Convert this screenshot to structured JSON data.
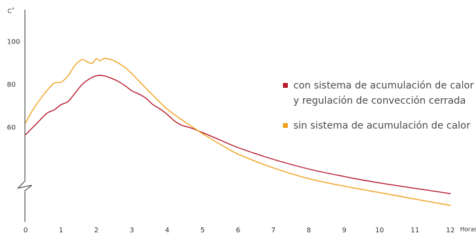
{
  "chart_data": {
    "type": "line",
    "ylabel": "C˚",
    "xlabel": "Horas",
    "xlim": [
      0,
      12
    ],
    "ylim": [
      20,
      100
    ],
    "y_axis_break": true,
    "x_ticks": [
      "0",
      "1",
      "2",
      "3",
      "4",
      "5",
      "6",
      "7",
      "8",
      "9",
      "10",
      "11",
      "12"
    ],
    "y_ticks": [
      "100",
      "80",
      "60"
    ],
    "grid": false,
    "legend_position": "right",
    "series": [
      {
        "name": "con sistema de acumulación de calor y regulación de convección cerrada",
        "name_lines": [
          "con sistema de acumulación de calor",
          "y regulación de convección cerrada"
        ],
        "color": "#b5182b",
        "x": [
          0,
          0.3,
          0.6,
          0.8,
          1.0,
          1.2,
          1.4,
          1.6,
          1.8,
          2.0,
          2.2,
          2.4,
          2.6,
          2.8,
          3.0,
          3.2,
          3.4,
          3.6,
          3.8,
          4.0,
          4.2,
          4.4,
          4.7,
          5.0,
          5.5,
          6,
          7,
          8,
          9,
          10,
          11,
          12
        ],
        "values": [
          56.5,
          61.5,
          66.5,
          68,
          70.5,
          72,
          76,
          80,
          82.5,
          84,
          84,
          83,
          81.5,
          79.5,
          77,
          75.5,
          73.5,
          70.5,
          68.5,
          66,
          63,
          61,
          59.5,
          57.5,
          54,
          50.5,
          45,
          40.5,
          37,
          34,
          31.5,
          29
        ]
      },
      {
        "name": "sin sistema de acumulación de calor",
        "name_lines": [
          "sin sistema de acumulación de calor"
        ],
        "color": "#f0a01c",
        "x": [
          0,
          0.2,
          0.5,
          0.8,
          1.0,
          1.2,
          1.4,
          1.6,
          1.8,
          1.9,
          2.0,
          2.1,
          2.2,
          2.3,
          2.5,
          2.8,
          3.0,
          3.5,
          4.0,
          4.5,
          5.0,
          5.5,
          6,
          7,
          8,
          9,
          10,
          11,
          12
        ],
        "values": [
          62,
          68,
          75,
          80.5,
          81,
          84,
          89,
          91.5,
          90,
          90,
          92,
          91,
          92,
          92,
          91,
          88,
          85,
          76.5,
          68.5,
          62.5,
          57,
          52,
          47.5,
          41,
          36,
          32.5,
          29.5,
          26.5,
          23.5
        ]
      }
    ]
  }
}
